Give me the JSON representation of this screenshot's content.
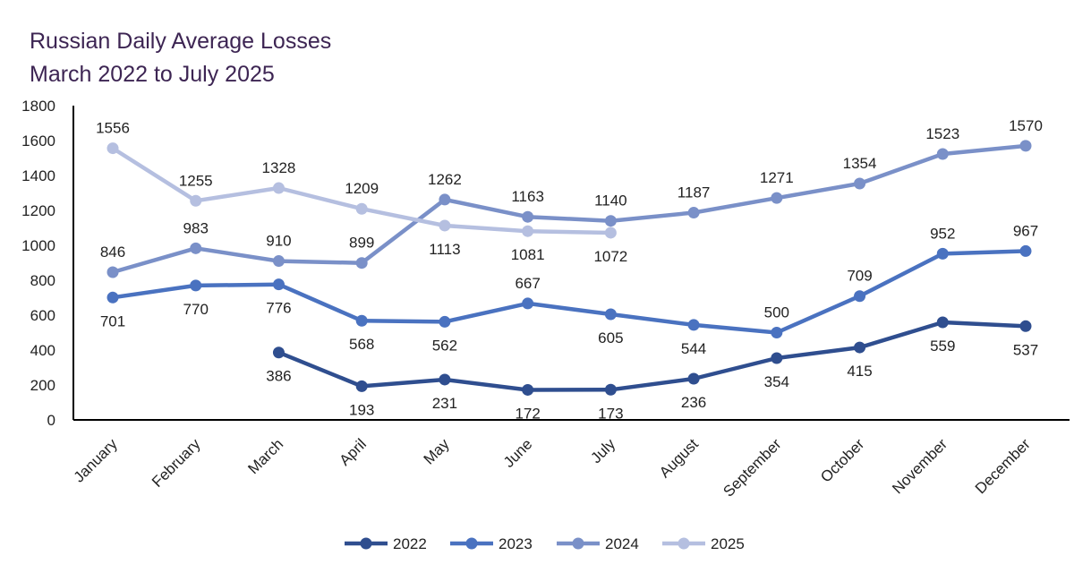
{
  "chart_data": {
    "type": "line",
    "title": "Russian Daily Average Losses",
    "subtitle": "March 2022 to July 2025",
    "xlabel": "",
    "ylabel": "",
    "ylim": [
      0,
      1800
    ],
    "yticks": [
      0,
      200,
      400,
      600,
      800,
      1000,
      1200,
      1400,
      1600,
      1800
    ],
    "grid": false,
    "legend_position": "bottom",
    "categories": [
      "January",
      "February",
      "March",
      "April",
      "May",
      "June",
      "July",
      "August",
      "September",
      "October",
      "November",
      "December"
    ],
    "series": [
      {
        "name": "2022",
        "color": "#2f4e8f",
        "label_pos": "below",
        "values": [
          null,
          null,
          386,
          193,
          231,
          172,
          173,
          236,
          354,
          415,
          559,
          537
        ]
      },
      {
        "name": "2023",
        "color": "#4a72c0",
        "label_pos": "below",
        "values": [
          701,
          770,
          776,
          568,
          562,
          667,
          605,
          544,
          500,
          709,
          952,
          967
        ],
        "label_pos_override": {
          "5": "above",
          "8": "above",
          "9": "above",
          "10": "above",
          "11": "above"
        }
      },
      {
        "name": "2024",
        "color": "#7a90c8",
        "label_pos": "above",
        "values": [
          846,
          983,
          910,
          899,
          1262,
          1163,
          1140,
          1187,
          1271,
          1354,
          1523,
          1570
        ]
      },
      {
        "name": "2025",
        "color": "#b5bfe0",
        "label_pos": "above",
        "values": [
          1556,
          1255,
          1328,
          1209,
          1113,
          1081,
          1072,
          null,
          null,
          null,
          null,
          null
        ],
        "label_pos_override": {
          "4": "below",
          "5": "below",
          "6": "below"
        }
      }
    ]
  }
}
